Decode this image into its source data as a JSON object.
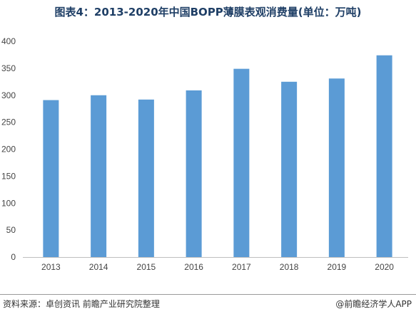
{
  "header": {
    "title": "图表4：2013-2020年中国BOPP薄膜表观消费量(单位：万吨)"
  },
  "footer": {
    "source": "资料来源：卓创资讯 前瞻产业研究院整理",
    "brand": "@前瞻经济学人APP"
  },
  "colors": {
    "bar": "#5b9bd5",
    "axis": "#bfbfbf"
  },
  "chart_data": {
    "type": "bar",
    "title": "图表4：2013-2020年中国BOPP薄膜表观消费量(单位：万吨)",
    "categories": [
      "2013",
      "2014",
      "2015",
      "2016",
      "2017",
      "2018",
      "2019",
      "2020"
    ],
    "values": [
      291,
      300,
      292,
      309,
      349,
      325,
      331,
      374
    ],
    "y_ticks": [
      "0",
      "50",
      "100",
      "150",
      "200",
      "250",
      "300",
      "350",
      "400"
    ],
    "ylim": [
      0,
      400
    ],
    "grid": false,
    "xlabel": "",
    "ylabel": ""
  }
}
